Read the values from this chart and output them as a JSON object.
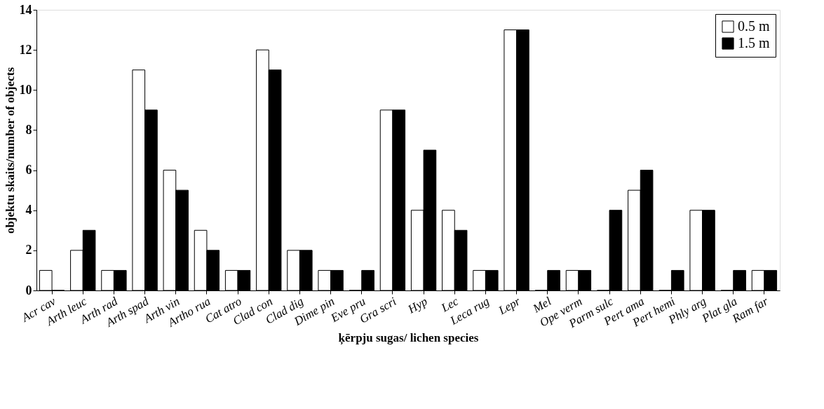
{
  "chart_data": {
    "type": "bar",
    "xlabel": "ķērpju  sugas/ lichen species",
    "ylabel": "objektu skaits/number of objects",
    "categories": [
      "Acr cav",
      "Arth leuc",
      "Arth rad",
      "Arth spad",
      "Arth vin",
      "Artho rua",
      "Cat atro",
      "Clad con",
      "Clad dig",
      "Dime pin",
      "Eve pru",
      "Gra scri",
      "Hyp",
      "Lec",
      "Leca rug",
      "Lepr",
      "Mel",
      "Ope verm",
      "Parm sulc",
      "Pert ama",
      "Pert hemi",
      "Phly arg",
      "Plat gla",
      "Ram far"
    ],
    "series": [
      {
        "name": "0.5 m",
        "color": "#ffffff",
        "values": [
          1,
          2,
          1,
          11,
          6,
          3,
          1,
          12,
          2,
          1,
          0,
          9,
          4,
          4,
          1,
          13,
          0,
          1,
          0,
          5,
          0,
          4,
          0,
          1
        ]
      },
      {
        "name": "1.5 m",
        "color": "#000000",
        "values": [
          0,
          3,
          1,
          9,
          5,
          2,
          1,
          11,
          2,
          1,
          1,
          9,
          7,
          3,
          1,
          13,
          1,
          1,
          4,
          6,
          1,
          4,
          1,
          1
        ]
      }
    ],
    "ylim": [
      0,
      14
    ],
    "yticks": [
      0,
      2,
      4,
      6,
      8,
      10,
      12,
      14
    ],
    "grid": false,
    "legend": "top right"
  }
}
